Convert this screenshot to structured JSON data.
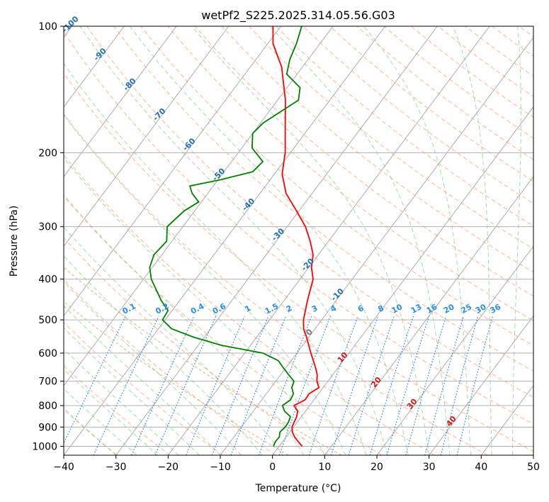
{
  "chart_data": {
    "type": "line",
    "title": "wetPf2_S225.2025.314.05.56.G03",
    "xlabel": "Temperature (°C)",
    "ylabel": "Pressure (hPa)",
    "xlim": [
      -40,
      50
    ],
    "ylim": [
      1050,
      100
    ],
    "y_scale": "log",
    "x_ticks": [
      -40,
      -30,
      -20,
      -10,
      0,
      10,
      20,
      30,
      40,
      50
    ],
    "y_ticks": [
      100,
      200,
      300,
      400,
      500,
      600,
      700,
      800,
      900,
      1000
    ],
    "x_tick_labels": [
      "−40",
      "−30",
      "−20",
      "−10",
      "0",
      "10",
      "20",
      "30",
      "40",
      "50"
    ],
    "y_tick_labels": [
      "100",
      "200",
      "300",
      "400",
      "500",
      "600",
      "700",
      "800",
      "900",
      "1000"
    ],
    "grid": true,
    "skew": true,
    "series": [
      {
        "color": "#ff0000",
        "points": [
          [
            4.4,
            1000
          ],
          [
            3.0,
            975
          ],
          [
            1.6,
            950
          ],
          [
            0.5,
            925
          ],
          [
            -0.3,
            900
          ],
          [
            -0.6,
            875
          ],
          [
            -0.9,
            850
          ],
          [
            -1.5,
            825
          ],
          [
            -3.0,
            800
          ],
          [
            -1.7,
            775
          ],
          [
            -1.8,
            750
          ],
          [
            -0.8,
            725
          ],
          [
            -2.1,
            700
          ],
          [
            -3.0,
            675
          ],
          [
            -4.3,
            650
          ],
          [
            -7.3,
            600
          ],
          [
            -10.4,
            550
          ],
          [
            -12.2,
            525
          ],
          [
            -13.5,
            500
          ],
          [
            -15.5,
            450
          ],
          [
            -17.5,
            400
          ],
          [
            -19.5,
            375
          ],
          [
            -21.0,
            350
          ],
          [
            -23.5,
            325
          ],
          [
            -26.5,
            300
          ],
          [
            -30.5,
            275
          ],
          [
            -35.0,
            250
          ],
          [
            -38.5,
            225
          ],
          [
            -41.0,
            200
          ],
          [
            -44.5,
            175
          ],
          [
            -48.5,
            150
          ],
          [
            -54.0,
            125
          ],
          [
            -59.0,
            110
          ],
          [
            -61.5,
            100
          ]
        ]
      },
      {
        "color": "#008000",
        "points": [
          [
            -1.1,
            1000
          ],
          [
            -1.4,
            975
          ],
          [
            -1.3,
            950
          ],
          [
            -1.9,
            925
          ],
          [
            -1.6,
            900
          ],
          [
            -1.7,
            875
          ],
          [
            -2.1,
            850
          ],
          [
            -4.0,
            825
          ],
          [
            -5.2,
            800
          ],
          [
            -4.5,
            775
          ],
          [
            -4.8,
            750
          ],
          [
            -6.0,
            725
          ],
          [
            -6.5,
            700
          ],
          [
            -8.5,
            675
          ],
          [
            -10.5,
            650
          ],
          [
            -12.5,
            625
          ],
          [
            -16.5,
            600
          ],
          [
            -25.5,
            575
          ],
          [
            -32.0,
            550
          ],
          [
            -37.5,
            525
          ],
          [
            -40.5,
            500
          ],
          [
            -40.8,
            475
          ],
          [
            -43.5,
            450
          ],
          [
            -48.5,
            400
          ],
          [
            -50.5,
            375
          ],
          [
            -51.5,
            350
          ],
          [
            -51.0,
            325
          ],
          [
            -53.0,
            300
          ],
          [
            -52.0,
            275
          ],
          [
            -50.5,
            262
          ],
          [
            -53.0,
            250
          ],
          [
            -54.5,
            240
          ],
          [
            -49.5,
            232
          ],
          [
            -44.5,
            222
          ],
          [
            -44.0,
            210
          ],
          [
            -48.0,
            195
          ],
          [
            -50.0,
            180
          ],
          [
            -49.5,
            170
          ],
          [
            -46.0,
            150
          ],
          [
            -47.5,
            140
          ],
          [
            -52.0,
            130
          ],
          [
            -53.5,
            120
          ],
          [
            -54.5,
            110
          ],
          [
            -56.0,
            100
          ]
        ]
      }
    ],
    "background_lines": {
      "dry_adiabats_color": "#ff9b73",
      "moist_adiabats_color": "#6fbf6f",
      "isotherms_color": "#999999",
      "mixing_ratio_color": "#1e7fd6",
      "theta_e_color": "#c8aa78",
      "dry_adiabat_label_color": "#1f6fb4",
      "moist_adiabat_label_color": "#cc1a1a",
      "moist_zero_label_color": "#777777",
      "mixing_ratio_label_color": "#2a8de6"
    },
    "dry_adiabat_labels": [
      "-100",
      "-90",
      "-80",
      "-70",
      "-60",
      "-50",
      "-40",
      "-30",
      "-20",
      "-10"
    ],
    "moist_adiabat_labels": [
      "0",
      "10",
      "20",
      "30",
      "40"
    ],
    "mixing_ratio_labels": [
      "0.1",
      "0.2",
      "0.4",
      "0.6",
      "1",
      "1.5",
      "2",
      "3",
      "4",
      "6",
      "8",
      "10",
      "13",
      "16",
      "20",
      "25",
      "30",
      "36"
    ]
  }
}
